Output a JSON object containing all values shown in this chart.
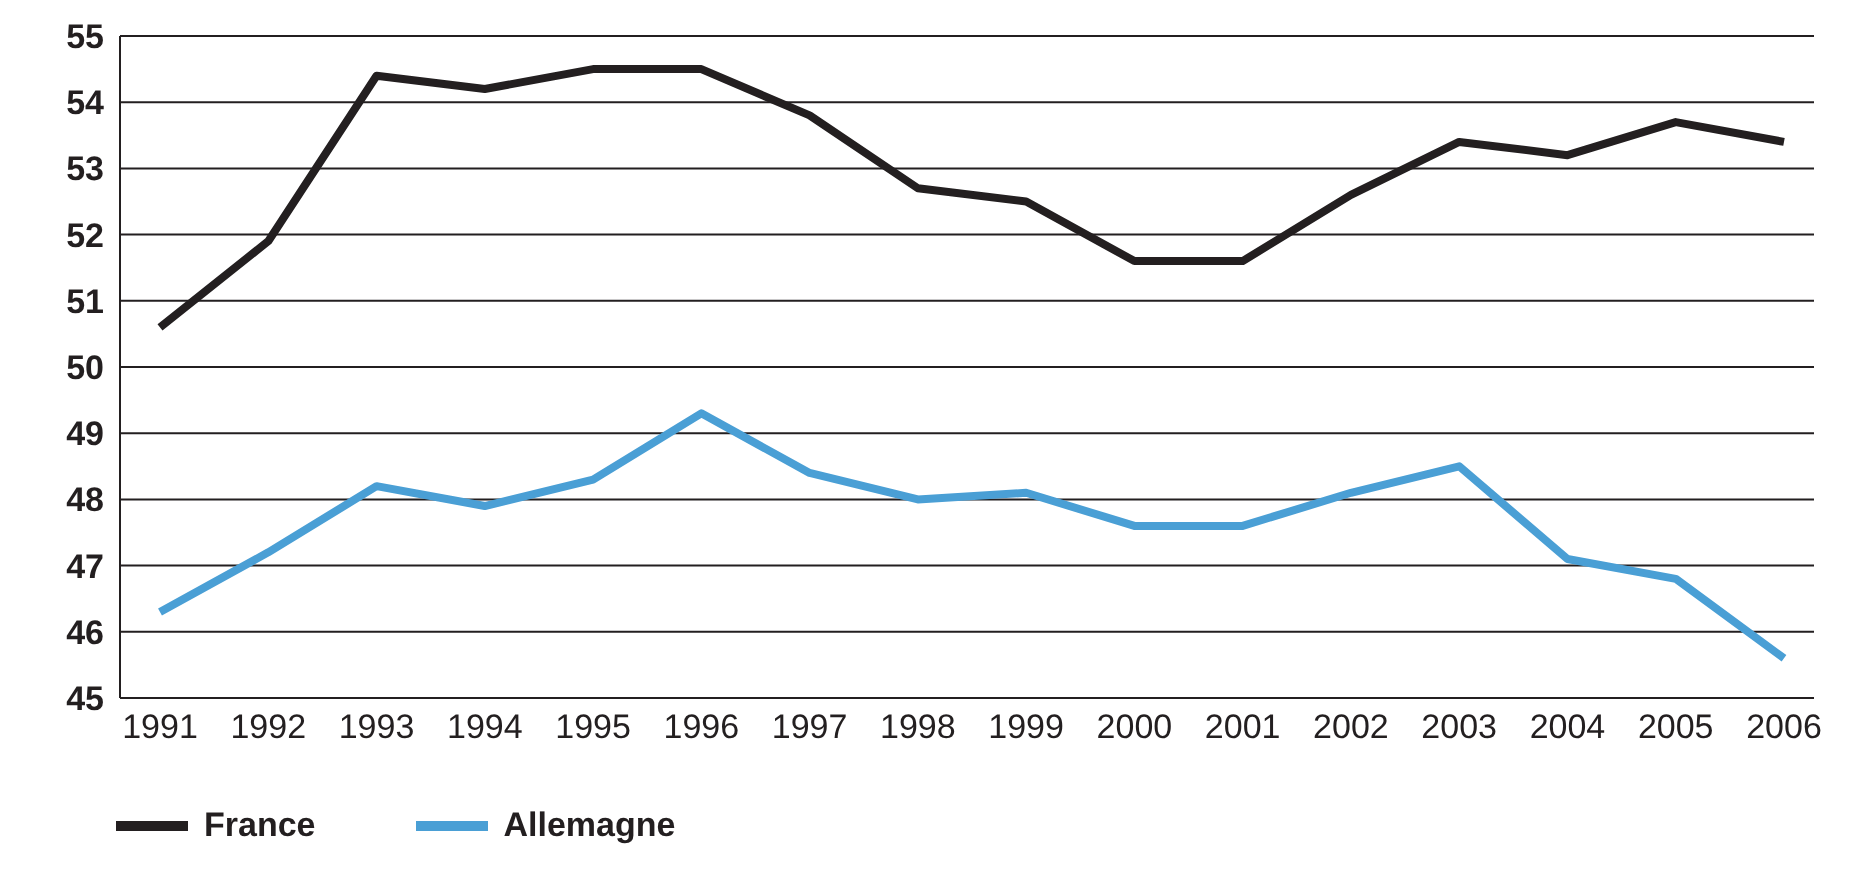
{
  "chart_data": {
    "type": "line",
    "categories": [
      "1991",
      "1992",
      "1993",
      "1994",
      "1995",
      "1996",
      "1997",
      "1998",
      "1999",
      "2000",
      "2001",
      "2002",
      "2003",
      "2004",
      "2005",
      "2006"
    ],
    "series": [
      {
        "name": "France",
        "color": "#231f20",
        "values": [
          50.6,
          51.9,
          54.4,
          54.2,
          54.5,
          54.5,
          53.8,
          52.7,
          52.5,
          51.6,
          51.6,
          52.6,
          53.4,
          53.2,
          53.7,
          53.4
        ]
      },
      {
        "name": "Allemagne",
        "color": "#4a9fd5",
        "values": [
          46.3,
          47.2,
          48.2,
          47.9,
          48.3,
          49.3,
          48.4,
          48.0,
          48.1,
          47.6,
          47.6,
          48.1,
          48.5,
          47.1,
          46.8,
          45.6
        ]
      }
    ],
    "ylim": [
      45,
      55
    ],
    "yticks": [
      45,
      46,
      47,
      48,
      49,
      50,
      51,
      52,
      53,
      54,
      55
    ],
    "grid": "y",
    "legend": "bottom left",
    "marker": "none",
    "line_style": "solid"
  }
}
